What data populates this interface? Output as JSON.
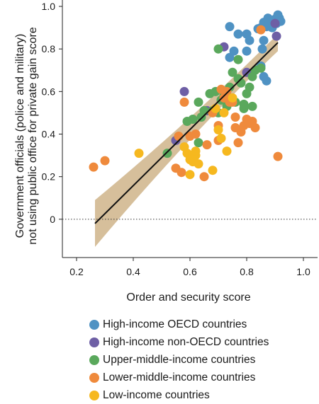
{
  "chart_data": {
    "type": "scatter",
    "xlabel": "Order and security score",
    "ylabel_lines": [
      "Government officials (police and military)",
      "not using public office for private gain score"
    ],
    "xlim": [
      0.15,
      1.05
    ],
    "ylim": [
      -0.18,
      1.03
    ],
    "xticks": [
      0.2,
      0.4,
      0.6,
      0.8,
      1.0
    ],
    "xtick_labels": [
      "0.2",
      "0.4",
      "0.6",
      "0.8",
      "1.0"
    ],
    "yticks": [
      0,
      0.2,
      0.4,
      0.6,
      0.8,
      1.0
    ],
    "ytick_labels": [
      "0",
      "0.2",
      "0.4",
      "0.6",
      "0.8",
      "1.0"
    ],
    "zero_line": "dotted",
    "grid": false,
    "legend_position": "bottom",
    "regression": {
      "x_start": 0.265,
      "y_start": -0.02,
      "x_end": 0.91,
      "y_end": 0.83,
      "ci_at_start": [
        -0.13,
        0.09
      ],
      "ci_at_end": [
        0.79,
        0.87
      ],
      "ci_mid_x": 0.6,
      "ci_mid": [
        0.4,
        0.46
      ]
    },
    "series": [
      {
        "name": "High-income OECD countries",
        "color": "#4f92c3",
        "points": [
          [
            0.74,
            0.905
          ],
          [
            0.77,
            0.87
          ],
          [
            0.8,
            0.87
          ],
          [
            0.81,
            0.84
          ],
          [
            0.84,
            0.895
          ],
          [
            0.85,
            0.9
          ],
          [
            0.86,
            0.925
          ],
          [
            0.87,
            0.905
          ],
          [
            0.875,
            0.945
          ],
          [
            0.88,
            0.92
          ],
          [
            0.885,
            0.935
          ],
          [
            0.89,
            0.9
          ],
          [
            0.895,
            0.93
          ],
          [
            0.9,
            0.94
          ],
          [
            0.905,
            0.92
          ],
          [
            0.91,
            0.96
          ],
          [
            0.915,
            0.945
          ],
          [
            0.92,
            0.93
          ],
          [
            0.86,
            0.84
          ],
          [
            0.855,
            0.8
          ],
          [
            0.85,
            0.72
          ],
          [
            0.86,
            0.67
          ],
          [
            0.87,
            0.65
          ],
          [
            0.74,
            0.76
          ],
          [
            0.755,
            0.79
          ],
          [
            0.8,
            0.79
          ]
        ]
      },
      {
        "name": "High-income non-OECD countries",
        "color": "#6e5fa5",
        "points": [
          [
            0.55,
            0.37
          ],
          [
            0.58,
            0.6
          ],
          [
            0.66,
            0.51
          ],
          [
            0.72,
            0.81
          ],
          [
            0.8,
            0.69
          ],
          [
            0.9,
            0.92
          ],
          [
            0.905,
            0.86
          ]
        ]
      },
      {
        "name": "Upper-middle-income countries",
        "color": "#5aa85c",
        "points": [
          [
            0.52,
            0.31
          ],
          [
            0.59,
            0.46
          ],
          [
            0.61,
            0.47
          ],
          [
            0.63,
            0.55
          ],
          [
            0.64,
            0.48
          ],
          [
            0.65,
            0.51
          ],
          [
            0.67,
            0.59
          ],
          [
            0.68,
            0.51
          ],
          [
            0.69,
            0.6
          ],
          [
            0.7,
            0.5
          ],
          [
            0.71,
            0.56
          ],
          [
            0.72,
            0.58
          ],
          [
            0.73,
            0.53
          ],
          [
            0.74,
            0.62
          ],
          [
            0.75,
            0.69
          ],
          [
            0.76,
            0.55
          ],
          [
            0.77,
            0.66
          ],
          [
            0.78,
            0.64
          ],
          [
            0.79,
            0.52
          ],
          [
            0.8,
            0.59
          ],
          [
            0.81,
            0.62
          ],
          [
            0.82,
            0.67
          ],
          [
            0.83,
            0.7
          ],
          [
            0.7,
            0.8
          ],
          [
            0.77,
            0.75
          ],
          [
            0.82,
            0.53
          ],
          [
            0.79,
            0.54
          ],
          [
            0.85,
            0.71
          ],
          [
            0.63,
            0.36
          ]
        ]
      },
      {
        "name": "Lower-middle-income countries",
        "color": "#ef8a3c",
        "points": [
          [
            0.26,
            0.245
          ],
          [
            0.3,
            0.275
          ],
          [
            0.55,
            0.24
          ],
          [
            0.57,
            0.22
          ],
          [
            0.56,
            0.39
          ],
          [
            0.58,
            0.55
          ],
          [
            0.6,
            0.39
          ],
          [
            0.62,
            0.4
          ],
          [
            0.65,
            0.2
          ],
          [
            0.66,
            0.35
          ],
          [
            0.68,
            0.5
          ],
          [
            0.7,
            0.37
          ],
          [
            0.7,
            0.44
          ],
          [
            0.72,
            0.57
          ],
          [
            0.73,
            0.6
          ],
          [
            0.74,
            0.55
          ],
          [
            0.75,
            0.55
          ],
          [
            0.76,
            0.43
          ],
          [
            0.76,
            0.48
          ],
          [
            0.77,
            0.36
          ],
          [
            0.78,
            0.41
          ],
          [
            0.79,
            0.44
          ],
          [
            0.8,
            0.47
          ],
          [
            0.81,
            0.45
          ],
          [
            0.82,
            0.46
          ],
          [
            0.83,
            0.43
          ],
          [
            0.85,
            0.89
          ],
          [
            0.91,
            0.295
          ],
          [
            0.71,
            0.61
          ]
        ]
      },
      {
        "name": "Low-income countries",
        "color": "#f6b81f",
        "points": [
          [
            0.42,
            0.31
          ],
          [
            0.58,
            0.34
          ],
          [
            0.59,
            0.31
          ],
          [
            0.6,
            0.28
          ],
          [
            0.6,
            0.21
          ],
          [
            0.61,
            0.27
          ],
          [
            0.62,
            0.3
          ],
          [
            0.62,
            0.32
          ],
          [
            0.63,
            0.26
          ],
          [
            0.68,
            0.23
          ],
          [
            0.69,
            0.52
          ],
          [
            0.7,
            0.42
          ],
          [
            0.71,
            0.38
          ],
          [
            0.72,
            0.5
          ],
          [
            0.73,
            0.32
          ],
          [
            0.75,
            0.57
          ]
        ]
      }
    ]
  }
}
